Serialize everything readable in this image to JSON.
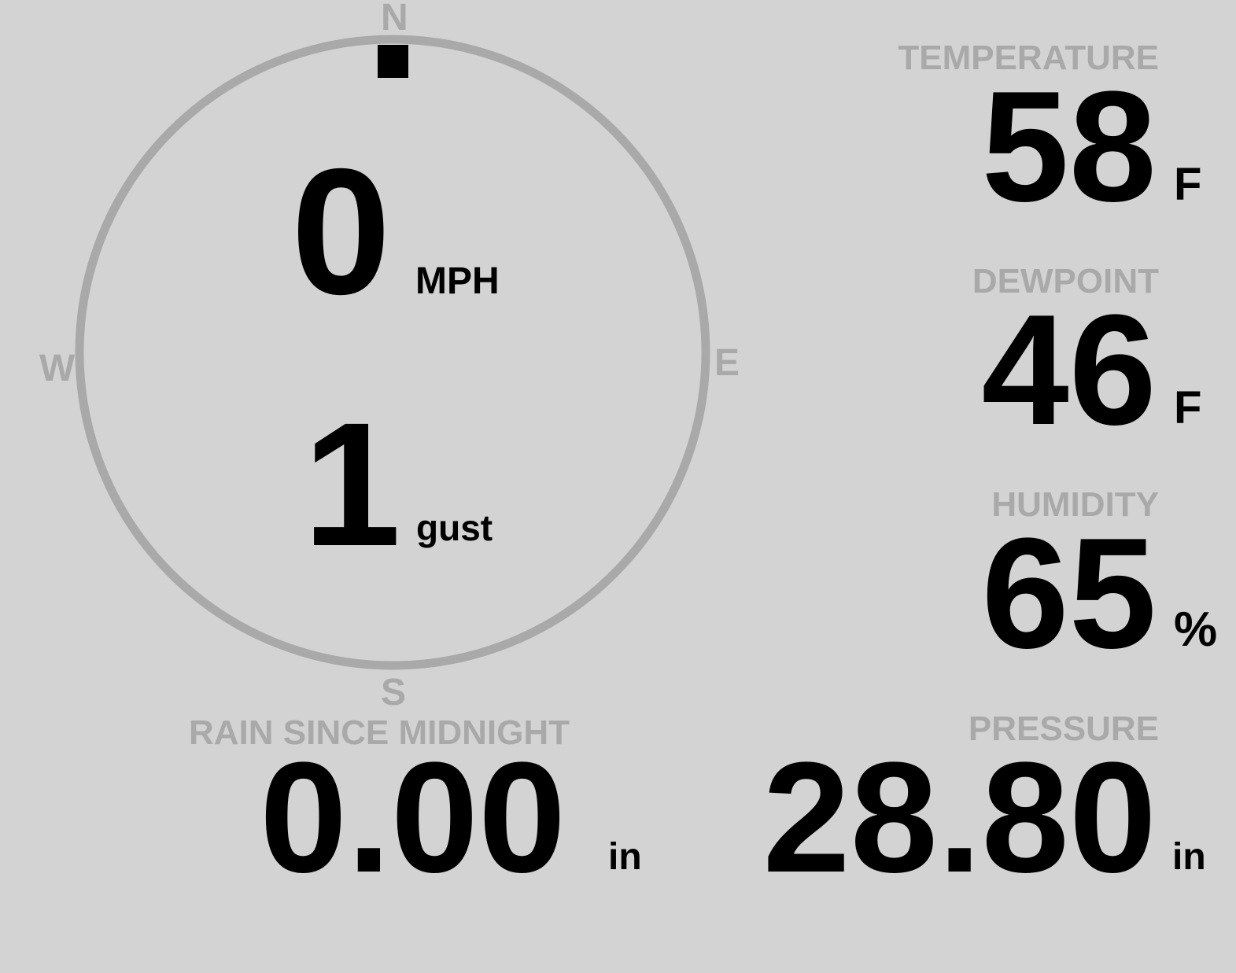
{
  "wind": {
    "speed": "0",
    "speed_unit": "MPH",
    "gust": "1",
    "gust_unit": "gust",
    "direction_deg": 0,
    "compass": {
      "n": "N",
      "e": "E",
      "s": "S",
      "w": "W"
    }
  },
  "temperature": {
    "label": "TEMPERATURE",
    "value": "58",
    "unit": "F"
  },
  "dewpoint": {
    "label": "DEWPOINT",
    "value": "46",
    "unit": "F"
  },
  "humidity": {
    "label": "HUMIDITY",
    "value": "65",
    "unit": "%"
  },
  "rain": {
    "label": "RAIN SINCE MIDNIGHT",
    "value": "0.00",
    "unit": "in"
  },
  "pressure": {
    "label": "PRESSURE",
    "value": "28.80",
    "unit": "in"
  },
  "colors": {
    "background": "#d3d3d3",
    "muted": "#a9a9a9",
    "value": "#000000"
  }
}
